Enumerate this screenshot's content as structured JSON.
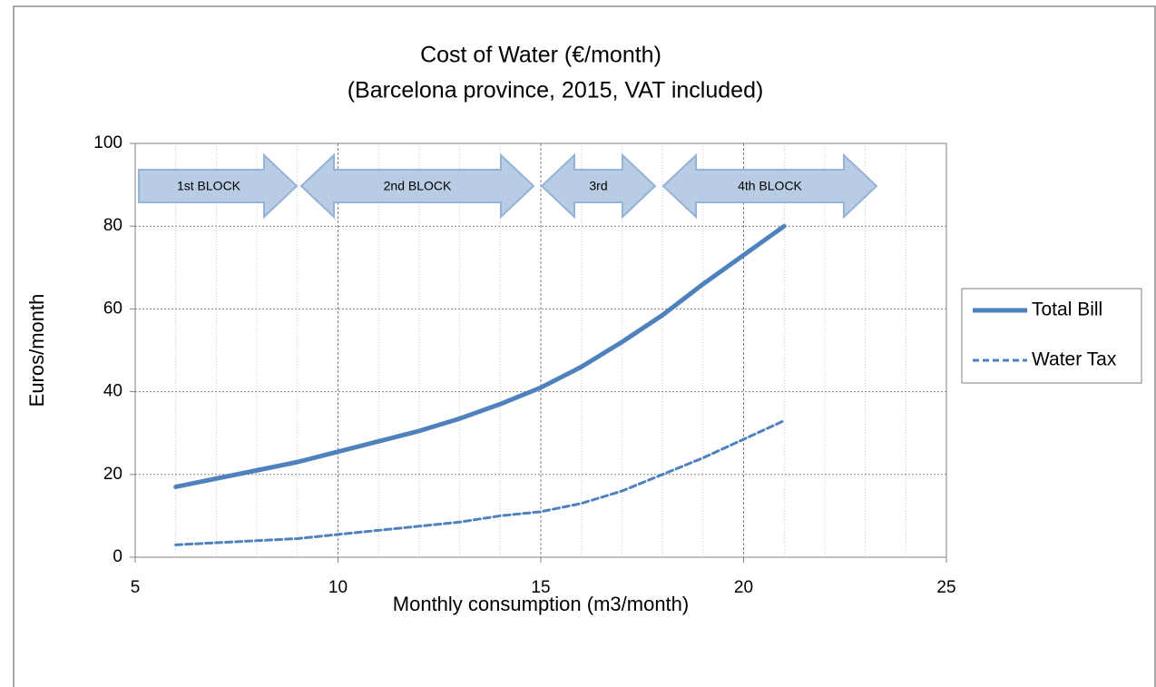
{
  "chart_data": {
    "type": "line",
    "title": "Cost of Water (€/month)",
    "subtitle": "(Barcelona province, 2015, VAT included)",
    "x_label": "Monthly consumption (m3/month)",
    "y_label": "Euros/month",
    "x": [
      6,
      7,
      8,
      9,
      10,
      11,
      12,
      13,
      14,
      15,
      16,
      17,
      18,
      19,
      20,
      21
    ],
    "series": [
      {
        "name": "Total Bill",
        "color": "#4f81bd",
        "dash": "solid",
        "values": [
          17,
          19,
          21,
          23,
          25.5,
          28,
          30.5,
          33.5,
          37,
          41,
          46,
          52,
          58.5,
          66,
          73,
          80
        ]
      },
      {
        "name": "Water Tax",
        "color": "#4f81bd",
        "dash": "dashed",
        "values": [
          3,
          3.5,
          4,
          4.5,
          5.5,
          6.5,
          7.5,
          8.5,
          10,
          11,
          13,
          16,
          20,
          24,
          28.5,
          33
        ]
      }
    ],
    "annotations": [
      "1st BLOCK",
      "2nd BLOCK",
      "3rd",
      "4th BLOCK"
    ],
    "xlim": [
      5,
      25
    ],
    "xticks": [
      5,
      10,
      15,
      20,
      25
    ],
    "ylim": [
      0,
      100
    ],
    "yticks": [
      0,
      20,
      40,
      60,
      80,
      100
    ],
    "grid": true,
    "legend": "right"
  }
}
